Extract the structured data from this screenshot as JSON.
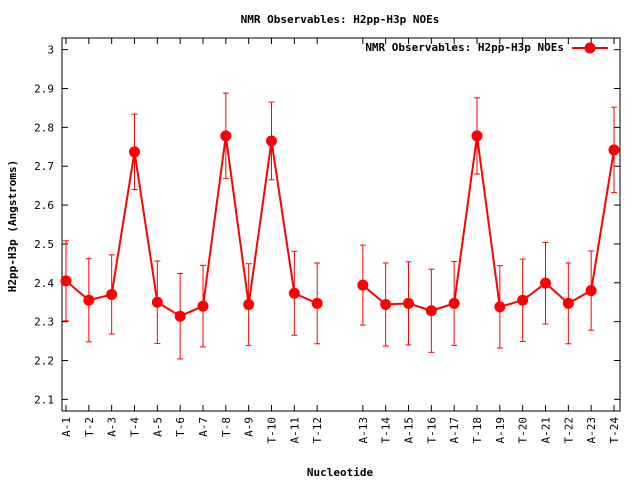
{
  "chart_data": {
    "type": "line",
    "title": "NMR Observables: H2pp-H3p NOEs",
    "xlabel": "Nucleotide",
    "ylabel": "H2pp-H3p (Angstroms)",
    "ylim": [
      2.07,
      3.03
    ],
    "yticks": [
      2.1,
      2.2,
      2.3,
      2.4,
      2.5,
      2.6,
      2.7,
      2.8,
      2.9,
      3.0
    ],
    "ytick_labels": [
      "2.1",
      "2.2",
      "2.3",
      "2.4",
      "2.5",
      "2.6",
      "2.7",
      "2.8",
      "2.9",
      "3"
    ],
    "grid": false,
    "legend_position": "top-right",
    "series": [
      {
        "name": "NMR Observables: H2pp-H3p NOEs",
        "color": "#ff0000",
        "segments": [
          {
            "x": [
              "A-1",
              "T-2",
              "A-3",
              "T-4",
              "A-5",
              "T-6",
              "A-7",
              "T-8",
              "A-9",
              "T-10",
              "A-11",
              "T-12"
            ],
            "y": [
              2.405,
              2.355,
              2.37,
              2.737,
              2.35,
              2.314,
              2.34,
              2.778,
              2.344,
              2.765,
              2.373,
              2.347
            ],
            "err": [
              0.103,
              0.107,
              0.102,
              0.097,
              0.106,
              0.11,
              0.105,
              0.11,
              0.105,
              0.1,
              0.108,
              0.104
            ]
          },
          {
            "x": [
              "A-13",
              "T-14",
              "A-15",
              "T-16",
              "A-17",
              "T-18",
              "A-19",
              "T-20",
              "A-21",
              "T-22",
              "A-23",
              "T-24"
            ],
            "y": [
              2.394,
              2.344,
              2.347,
              2.328,
              2.347,
              2.778,
              2.338,
              2.355,
              2.399,
              2.347,
              2.38,
              2.742
            ],
            "err": [
              0.103,
              0.107,
              0.107,
              0.107,
              0.108,
              0.098,
              0.106,
              0.106,
              0.105,
              0.104,
              0.102,
              0.11
            ]
          }
        ]
      }
    ]
  }
}
